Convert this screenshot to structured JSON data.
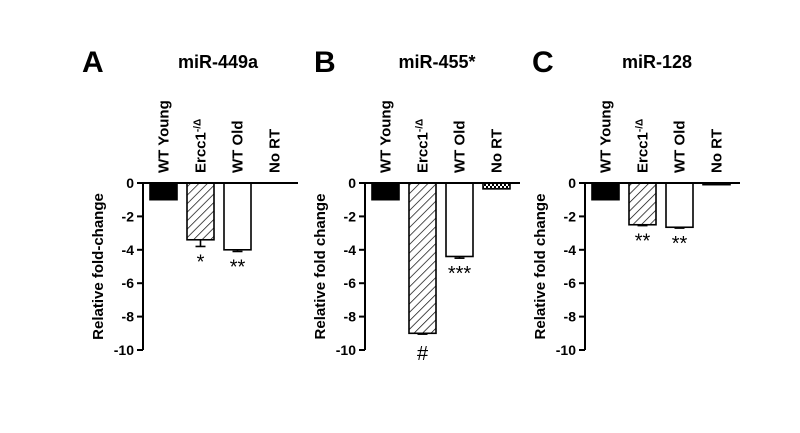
{
  "panels": [
    {
      "letter": "A",
      "chart_data": {
        "type": "bar",
        "title": "miR-449a",
        "ylabel": "Relative fold-change",
        "xlabel": "",
        "categories": [
          "WT Young",
          "Ercc1-/Δ",
          "WT Old",
          "No RT"
        ],
        "category_sup": [
          "",
          "-/Δ",
          "",
          ""
        ],
        "values": [
          -1.0,
          -3.4,
          -4.0,
          0.0
        ],
        "errors": [
          0,
          0.4,
          0.1,
          0
        ],
        "significance": [
          "",
          "*",
          "**",
          ""
        ],
        "fills": [
          "solid",
          "hatched",
          "open",
          "dotted"
        ],
        "ylim": [
          -10,
          0
        ],
        "yticks": [
          0,
          -2,
          -4,
          -6,
          -8,
          -10
        ],
        "grid": false
      }
    },
    {
      "letter": "B",
      "chart_data": {
        "type": "bar",
        "title": "miR-455*",
        "ylabel": "Relative fold change",
        "xlabel": "",
        "categories": [
          "WT Young",
          "Ercc1-/Δ",
          "WT Old",
          "No RT"
        ],
        "category_sup": [
          "",
          "-/Δ",
          "",
          ""
        ],
        "values": [
          -1.0,
          -9.0,
          -4.4,
          -0.35
        ],
        "errors": [
          0,
          0.05,
          0.1,
          0
        ],
        "significance": [
          "",
          "#",
          "***",
          ""
        ],
        "fills": [
          "solid",
          "hatched",
          "open",
          "dotted"
        ],
        "ylim": [
          -10,
          0
        ],
        "yticks": [
          0,
          -2,
          -4,
          -6,
          -8,
          -10
        ],
        "grid": false
      }
    },
    {
      "letter": "C",
      "chart_data": {
        "type": "bar",
        "title": "miR-128",
        "ylabel": "Relative fold change",
        "xlabel": "",
        "categories": [
          "WT Young",
          "Ercc1-/Δ",
          "WT Old",
          "No RT"
        ],
        "category_sup": [
          "",
          "-/Δ",
          "",
          ""
        ],
        "values": [
          -1.0,
          -2.5,
          -2.65,
          -0.1
        ],
        "errors": [
          0,
          0.05,
          0.05,
          0
        ],
        "significance": [
          "",
          "**",
          "**",
          ""
        ],
        "fills": [
          "solid",
          "hatched",
          "open",
          "dotted"
        ],
        "ylim": [
          -10,
          0
        ],
        "yticks": [
          0,
          -2,
          -4,
          -6,
          -8,
          -10
        ],
        "grid": false
      }
    }
  ],
  "chart_data": [
    {
      "type": "bar",
      "title": "miR-449a",
      "ylabel": "Relative fold-change",
      "categories": [
        "WT Young",
        "Ercc1-/Δ",
        "WT Old",
        "No RT"
      ],
      "values": [
        -1.0,
        -3.4,
        -4.0,
        0.0
      ],
      "ylim": [
        -10,
        0
      ]
    },
    {
      "type": "bar",
      "title": "miR-455*",
      "ylabel": "Relative fold change",
      "categories": [
        "WT Young",
        "Ercc1-/Δ",
        "WT Old",
        "No RT"
      ],
      "values": [
        -1.0,
        -9.0,
        -4.4,
        -0.35
      ],
      "ylim": [
        -10,
        0
      ]
    },
    {
      "type": "bar",
      "title": "miR-128",
      "ylabel": "Relative fold change",
      "categories": [
        "WT Young",
        "Ercc1-/Δ",
        "WT Old",
        "No RT"
      ],
      "values": [
        -1.0,
        -2.5,
        -2.65,
        -0.1
      ],
      "ylim": [
        -10,
        0
      ]
    }
  ]
}
